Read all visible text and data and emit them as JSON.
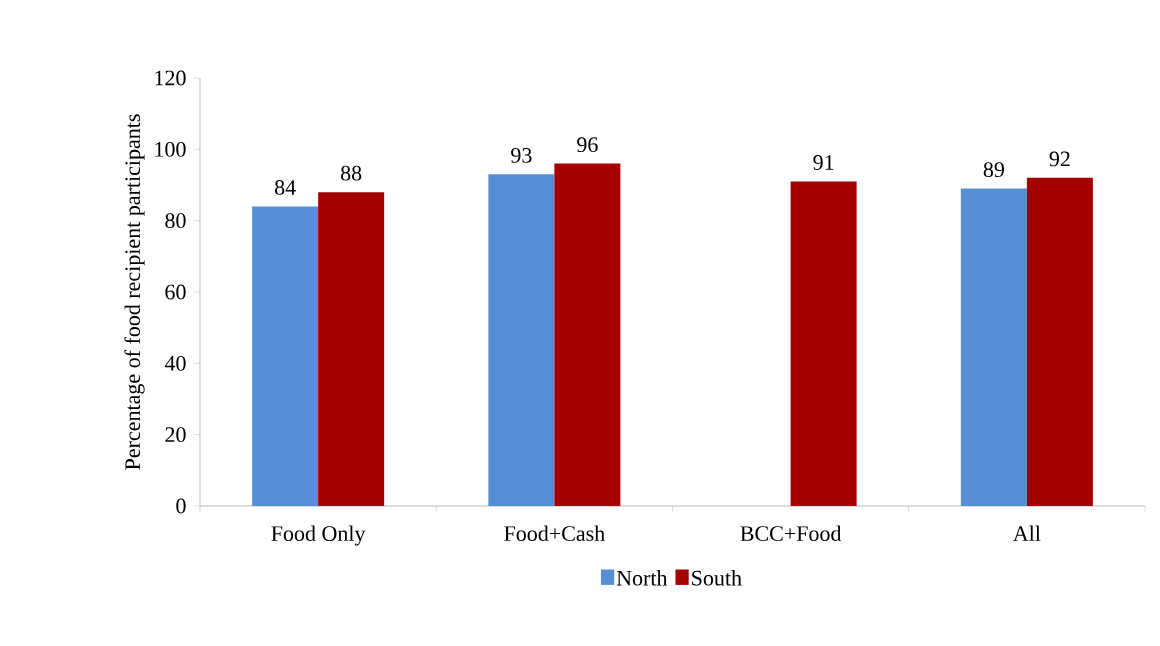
{
  "chart_data": {
    "type": "bar",
    "ylabel": "Percentage of food recipient participants",
    "categories": [
      "Food Only",
      "Food+Cash",
      "BCC+Food",
      "All"
    ],
    "series": [
      {
        "name": "North",
        "color": "#558ed5",
        "values": [
          84,
          93,
          null,
          89
        ]
      },
      {
        "name": "South",
        "color": "#a50000",
        "values": [
          88,
          96,
          91,
          92
        ]
      }
    ],
    "ylim": [
      0,
      120
    ],
    "yticks": [
      0,
      20,
      40,
      60,
      80,
      100,
      120
    ],
    "data_labels": true,
    "legend": "bottom",
    "grid": false
  }
}
